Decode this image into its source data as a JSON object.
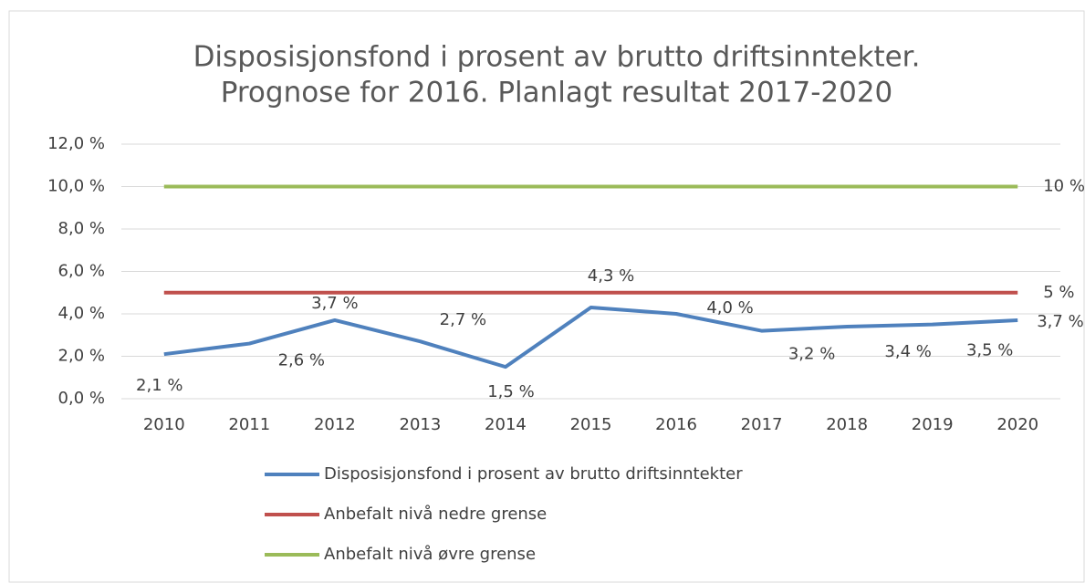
{
  "chart_data": {
    "type": "line",
    "title": [
      "Disposisjonsfond  i prosent av brutto driftsinntekter.",
      "Prognose for 2016. Planlagt resultat 2017-2020"
    ],
    "categories": [
      "2010",
      "2011",
      "2012",
      "2013",
      "2014",
      "2015",
      "2016",
      "2017",
      "2018",
      "2019",
      "2020"
    ],
    "series": [
      {
        "name": "Disposisjonsfond i prosent av brutto driftsinntekter",
        "color": "#4f81bd",
        "values": [
          2.1,
          2.6,
          3.7,
          2.7,
          1.5,
          4.3,
          4.0,
          3.2,
          3.4,
          3.5,
          3.7
        ],
        "value_labels": [
          "2,1 %",
          "2,6 %",
          "3,7 %",
          "2,7 %",
          "1,5 %",
          "4,3 %",
          "4,0 %",
          "3,2 %",
          "3,4 %",
          "3,5 %",
          "3,7 %"
        ]
      },
      {
        "name": "Anbefalt nivå nedre grense",
        "color": "#c0504d",
        "values": [
          5,
          5,
          5,
          5,
          5,
          5,
          5,
          5,
          5,
          5,
          5
        ],
        "value_labels": [
          null,
          null,
          null,
          null,
          null,
          null,
          null,
          null,
          null,
          null,
          "5 %"
        ]
      },
      {
        "name": "Anbefalt nivå øvre grense",
        "color": "#9bbb59",
        "values": [
          10,
          10,
          10,
          10,
          10,
          10,
          10,
          10,
          10,
          10,
          10
        ],
        "value_labels": [
          null,
          null,
          null,
          null,
          null,
          null,
          null,
          null,
          null,
          null,
          "10 %"
        ]
      }
    ],
    "ylim": [
      0,
      12
    ],
    "yticks": [
      {
        "value": 0,
        "label": "0,0 %"
      },
      {
        "value": 2,
        "label": "2,0 %"
      },
      {
        "value": 4,
        "label": "4,0 %"
      },
      {
        "value": 6,
        "label": "6,0 %"
      },
      {
        "value": 8,
        "label": "8,0 %"
      },
      {
        "value": 10,
        "label": "10,0 %"
      },
      {
        "value": 12,
        "label": "12,0 %"
      }
    ],
    "grid": true,
    "legend": "bottom"
  }
}
